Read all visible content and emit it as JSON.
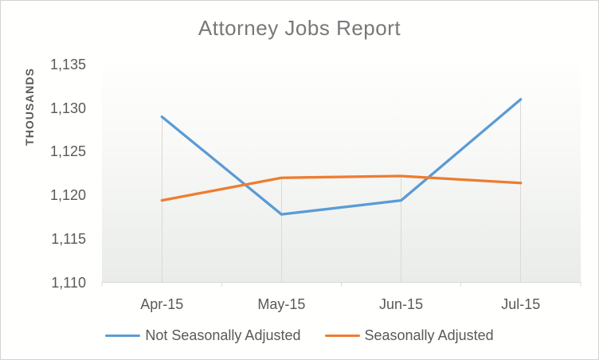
{
  "chart_data": {
    "type": "line",
    "title": "Attorney Jobs Report",
    "xlabel": "",
    "ylabel": "THOUSANDS",
    "categories": [
      "Apr-15",
      "May-15",
      "Jun-15",
      "Jul-15"
    ],
    "series": [
      {
        "name": "Not Seasonally Adjusted",
        "color": "#5B9BD5",
        "values": [
          1129.0,
          1117.8,
          1119.4,
          1131.0
        ]
      },
      {
        "name": "Seasonally Adjusted",
        "color": "#ED7D31",
        "values": [
          1119.4,
          1122.0,
          1122.2,
          1121.4
        ]
      }
    ],
    "ylim": [
      1110,
      1135
    ],
    "ytick_step": 5,
    "ytick_labels": [
      "1,110",
      "1,115",
      "1,120",
      "1,125",
      "1,130",
      "1,135"
    ],
    "grid": "vertical drop lines from top data point to x-axis only, no horizontal gridlines",
    "legend_position": "bottom",
    "colors": {
      "axis_line": "#D9D9D9",
      "drop_line": "#D9D9D9",
      "tick_label": "#595959",
      "title": "#787878",
      "plot_fill_bottom": "#E9ECE8",
      "plot_fill_top": "#FEFEFD"
    }
  }
}
